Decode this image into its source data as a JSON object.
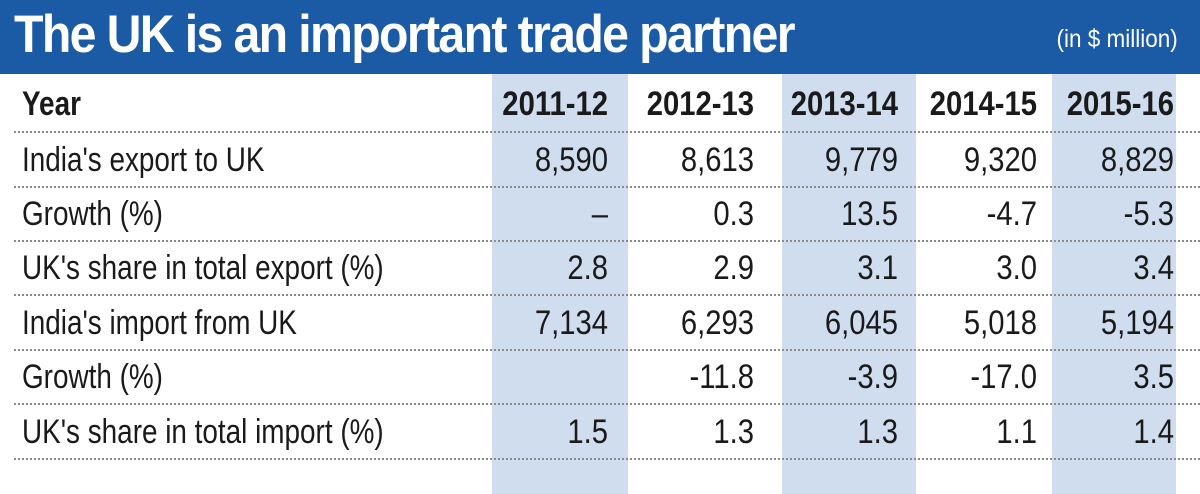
{
  "title": "The UK is an important trade partner",
  "unit": "(in $ million)",
  "chart_data": {
    "type": "table",
    "title": "The UK is an important trade partner",
    "unit": "(in $ million)",
    "header": {
      "label": "Year",
      "years": [
        "2011-12",
        "2012-13",
        "2013-14",
        "2014-15",
        "2015-16"
      ]
    },
    "rows": [
      {
        "label": "India's export to UK",
        "values": [
          "8,590",
          "8,613",
          "9,779",
          "9,320",
          "8,829"
        ]
      },
      {
        "label": "Growth (%)",
        "values": [
          "–",
          "0.3",
          "13.5",
          "-4.7",
          "-5.3"
        ]
      },
      {
        "label": "UK's share in total export (%)",
        "values": [
          "2.8",
          "2.9",
          "3.1",
          "3.0",
          "3.4"
        ]
      },
      {
        "label": "India's import from UK",
        "values": [
          "7,134",
          "6,293",
          "6,045",
          "5,018",
          "5,194"
        ]
      },
      {
        "label": "Growth (%)",
        "values": [
          "",
          "-11.8",
          "-3.9",
          "-17.0",
          "3.5"
        ]
      },
      {
        "label": "UK's share in total import (%)",
        "values": [
          "1.5",
          "1.3",
          "1.3",
          "1.1",
          "1.4"
        ]
      }
    ],
    "colors": {
      "header_band": "#1b5aa5",
      "column_shade": "#cfddee",
      "text": "#1a1a1a"
    }
  }
}
